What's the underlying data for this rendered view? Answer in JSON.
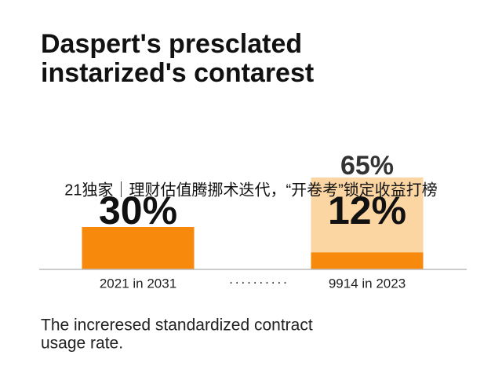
{
  "chart_data": {
    "type": "bar",
    "title_lines": [
      "Daspert's presclated",
      "instarized's contarest"
    ],
    "categories": [
      "2021 in 2031",
      "9914 in 2023"
    ],
    "series": [
      {
        "color": "#f7890c",
        "values": [
          30,
          12
        ],
        "value_labels": [
          "30%",
          "12%"
        ]
      },
      {
        "color": "#fbd6a3",
        "values": [
          null,
          65
        ],
        "value_labels": [
          null,
          "65%"
        ]
      }
    ],
    "caption_lines": [
      "The increresed standardized contract",
      "usage rate."
    ],
    "overlay_text": "21独家｜理财估值腾挪术迭代，“开卷考”锁定收益打榜"
  }
}
